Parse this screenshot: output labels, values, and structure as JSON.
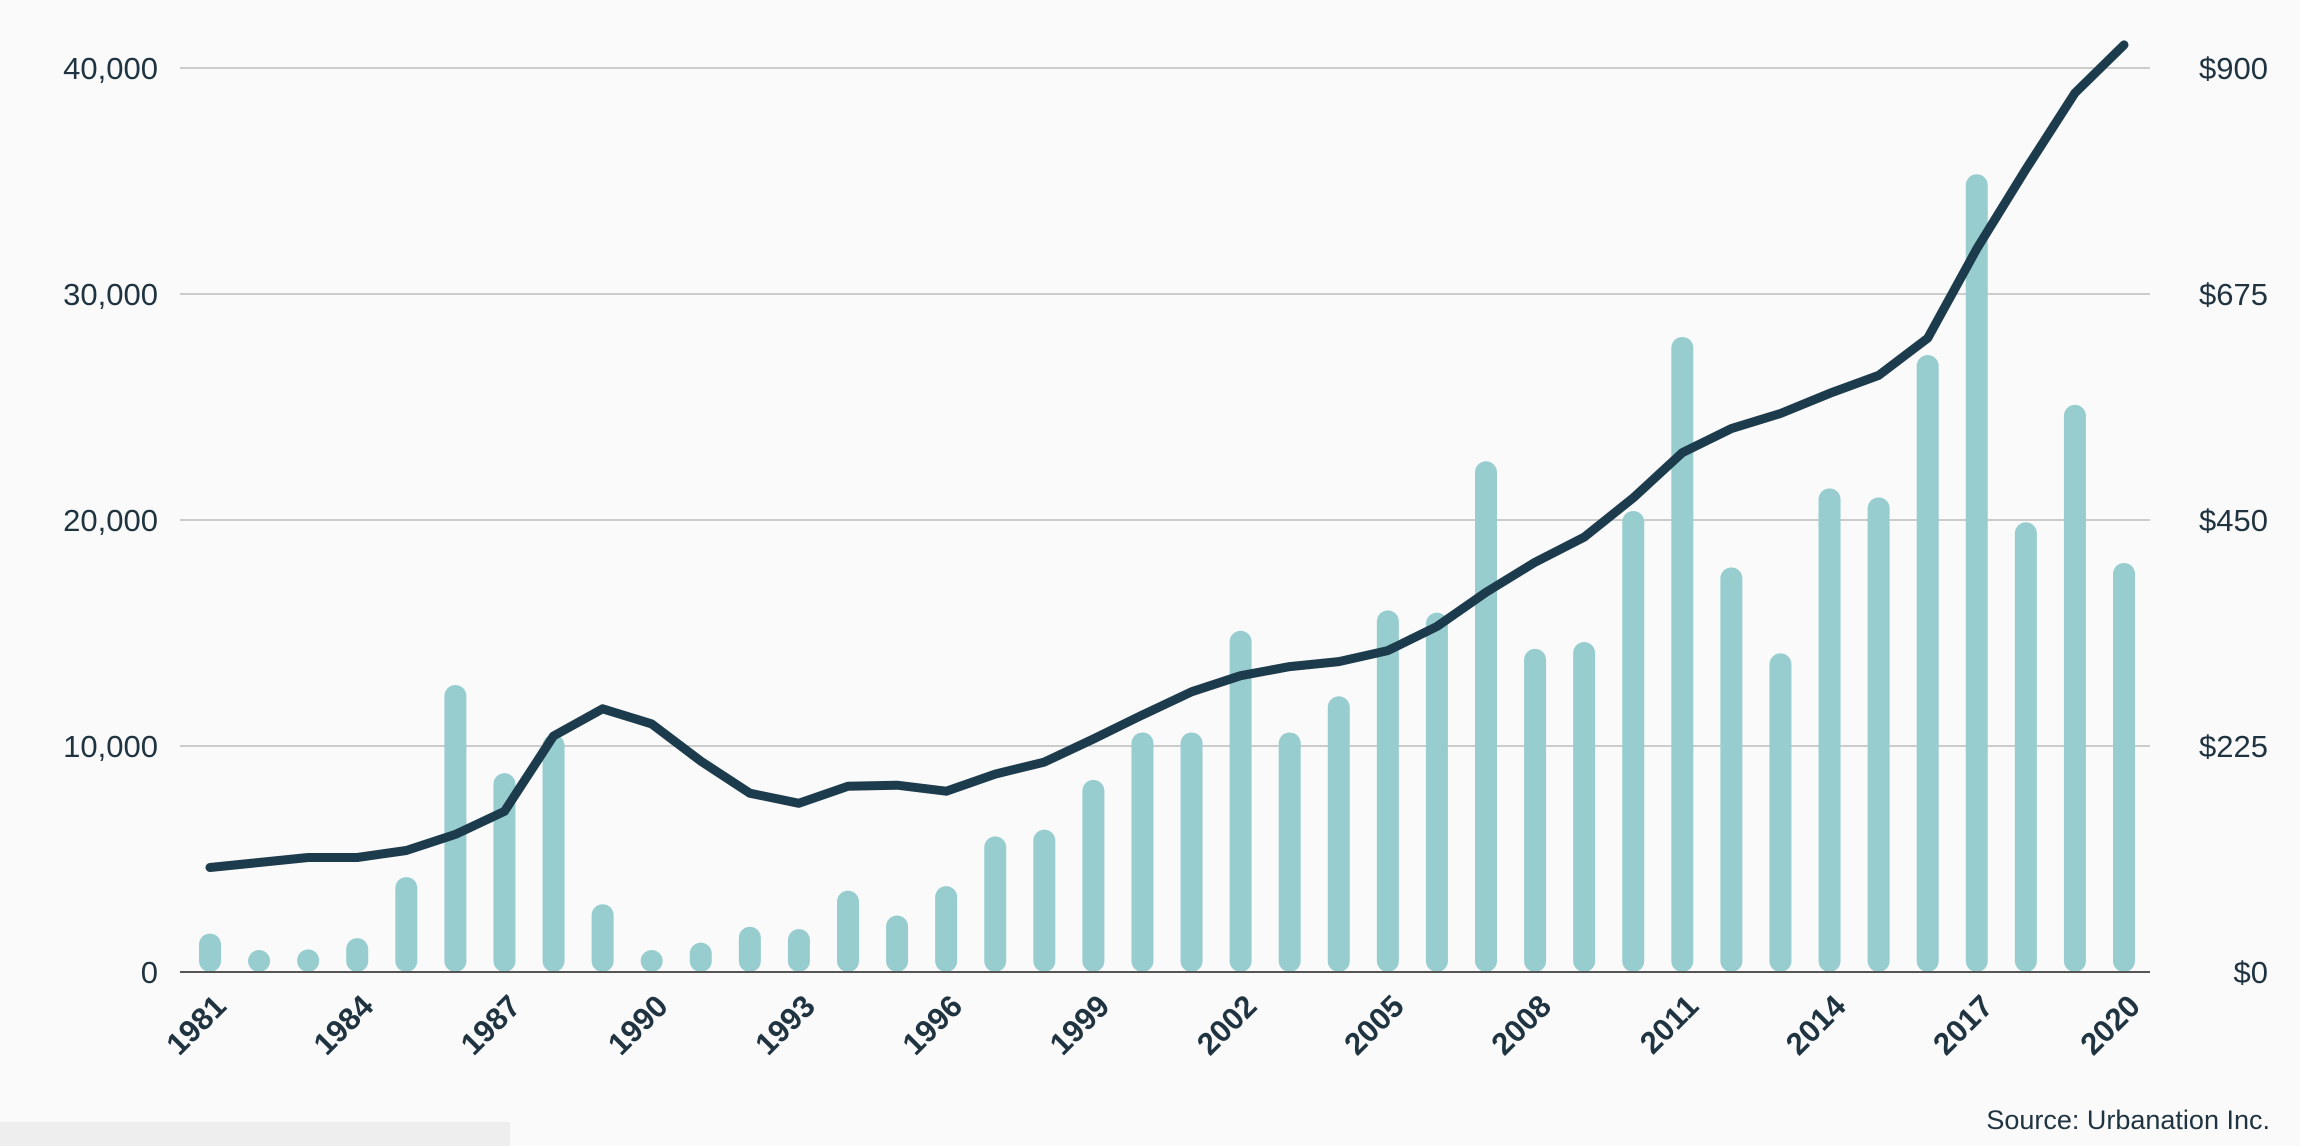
{
  "chart_data": {
    "type": "bar+line",
    "x": [
      1981,
      1982,
      1983,
      1984,
      1985,
      1986,
      1987,
      1988,
      1989,
      1990,
      1991,
      1992,
      1993,
      1994,
      1995,
      1996,
      1997,
      1998,
      1999,
      2000,
      2001,
      2002,
      2003,
      2004,
      2005,
      2006,
      2007,
      2008,
      2009,
      2010,
      2011,
      2012,
      2013,
      2014,
      2015,
      2016,
      2017,
      2018,
      2019,
      2020
    ],
    "x_tick_labels": [
      "1981",
      "1984",
      "1987",
      "1990",
      "1993",
      "1996",
      "1999",
      "2002",
      "2005",
      "2008",
      "2011",
      "2014",
      "2017",
      "2020"
    ],
    "series": [
      {
        "type": "bar",
        "axis": "left",
        "values": [
          1700,
          500,
          1000,
          1500,
          4200,
          12700,
          8800,
          10500,
          3000,
          500,
          1300,
          2000,
          1900,
          3600,
          2500,
          3800,
          6000,
          6300,
          8500,
          10600,
          10600,
          15100,
          10600,
          12200,
          16000,
          15900,
          22600,
          14300,
          14600,
          20400,
          28100,
          17900,
          14100,
          21400,
          21000,
          27300,
          35300,
          19900,
          25100,
          18100
        ]
      },
      {
        "type": "line",
        "axis": "right",
        "values": [
          104,
          109,
          114,
          114,
          121,
          137,
          160,
          235,
          262,
          247,
          210,
          178,
          168,
          185,
          186,
          180,
          197,
          209,
          232,
          256,
          279,
          295,
          304,
          309,
          320,
          344,
          378,
          408,
          433,
          472,
          517,
          541,
          556,
          576,
          594,
          631,
          720,
          799,
          875,
          923
        ]
      }
    ],
    "left_axis": {
      "ylim": [
        0,
        40000
      ],
      "ticks": [
        "0",
        "10,000",
        "20,000",
        "30,000",
        "40,000"
      ]
    },
    "right_axis": {
      "ylim": [
        0,
        900
      ],
      "ticks": [
        "$0",
        "$225",
        "$450",
        "$675",
        "$900"
      ]
    },
    "grid": true,
    "colors": {
      "bar": "#97cdcf",
      "line": "#1c3b4c",
      "grid": "#bdbdbd",
      "text": "#1f3340"
    }
  },
  "source_text": "Source: Urbanation Inc."
}
